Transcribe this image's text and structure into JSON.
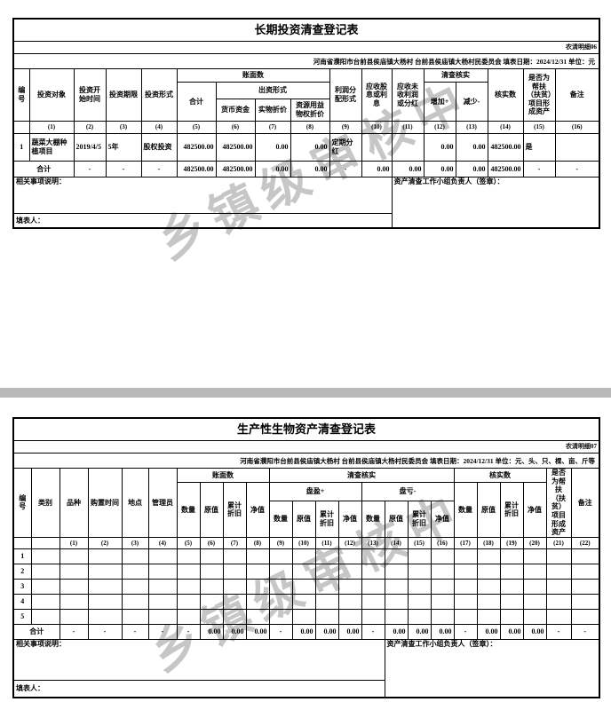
{
  "page": {
    "watermark_text": "乡镇级审核中",
    "watermark_color": "#bdbdbd",
    "divider_color": "#b9b9b9"
  },
  "table1": {
    "title": "长期投资清查登记表",
    "form_code": "农清明细06",
    "meta": "河南省濮阳市台前县侯庙镇大杨村  台前县侯庙镇大杨村民委员会  填表日期：2024/12/31  单位：元",
    "headers": {
      "no": "编号",
      "target": "投资对象",
      "start": "投资开始时间",
      "term": "投资期限",
      "form": "投资形式",
      "book": "账面数",
      "total": "合计",
      "contrib": "出资形式",
      "cash": "货币资金",
      "physical": "实物折价",
      "usufruct": "资源用益物权折价",
      "profit": "利润分配形式",
      "dividend": "应收股息或利息",
      "unreceived": "应收未收利润或分红",
      "verify": "清查核实",
      "increase": "增加+",
      "decrease": "减少-",
      "verified": "核实数",
      "poverty": "是否为帮扶（扶贫）项目形成资产",
      "remark": "备注"
    },
    "col_numbers": [
      "",
      "(1)",
      "(2)",
      "(3)",
      "(4)",
      "(5)",
      "(6)",
      "(7)",
      "(8)",
      "(9)",
      "(10)",
      "(11)",
      "(12)",
      "(13)",
      "(14)",
      "(15)",
      "(16)"
    ],
    "data_rows": [
      [
        "1",
        "蔬菜大棚种植项目",
        "2019/4/5",
        "5年",
        "股权投资",
        "482500.00",
        "482500.00",
        "0.00",
        "0.00",
        "定期分红",
        "",
        "",
        "0.00",
        "0.00",
        "482500.00",
        "是",
        ""
      ]
    ],
    "total_row": [
      {
        "t": "合计",
        "cs": 2
      },
      "-",
      "-",
      "-",
      "482500.00",
      "482500.00",
      "0.00",
      "0.00",
      "-",
      "0.00",
      "0.00",
      "0.00",
      "0.00",
      "482500.00",
      "-",
      "-"
    ],
    "notes_label": "相关事项说明：",
    "sign_label": "资产清查工作小组负责人（签章）：",
    "filler_label": "填表人："
  },
  "table2": {
    "title": "生产性生物资产清查登记表",
    "form_code": "农清明细07",
    "meta": "河南省濮阳市台前县侯庙镇大杨村  台前县侯庙镇大杨村民委员会  填表日期：2024/12/31  单位：元、头、只、棵、亩、斤等",
    "headers": {
      "no": "编号",
      "category": "类别",
      "breed": "品种",
      "purchase_time": "购置时间",
      "location": "地点",
      "manager": "管理员",
      "book": "账面数",
      "verify": "清查核实",
      "surplus": "盘盈+",
      "deficit": "盘亏-",
      "verified": "核实数",
      "qty": "数量",
      "orig": "原值",
      "depr": "累计折旧",
      "net": "净值",
      "poverty": "是否为帮扶（扶贫）项目形成资产",
      "remark": "备注"
    },
    "col_numbers": [
      "",
      "",
      "(1)",
      "(2)",
      "(3)",
      "(4)",
      "(5)",
      "(6)",
      "(7)",
      "(8)",
      "(9)",
      "(10)",
      "(11)",
      "(12)",
      "(13)",
      "(14)",
      "(15)",
      "(16)",
      "(17)",
      "(18)",
      "(19)",
      "(20)",
      "(21)",
      "(22)"
    ],
    "data_rows": [
      [
        "1",
        "",
        "",
        "",
        "",
        "",
        "",
        "",
        "",
        "",
        "",
        "",
        "",
        "",
        "",
        "",
        "",
        "",
        "",
        "",
        "",
        "",
        "",
        ""
      ],
      [
        "2",
        "",
        "",
        "",
        "",
        "",
        "",
        "",
        "",
        "",
        "",
        "",
        "",
        "",
        "",
        "",
        "",
        "",
        "",
        "",
        "",
        "",
        "",
        ""
      ],
      [
        "3",
        "",
        "",
        "",
        "",
        "",
        "",
        "",
        "",
        "",
        "",
        "",
        "",
        "",
        "",
        "",
        "",
        "",
        "",
        "",
        "",
        "",
        "",
        ""
      ],
      [
        "4",
        "",
        "",
        "",
        "",
        "",
        "",
        "",
        "",
        "",
        "",
        "",
        "",
        "",
        "",
        "",
        "",
        "",
        "",
        "",
        "",
        "",
        "",
        ""
      ],
      [
        "5",
        "",
        "",
        "",
        "",
        "",
        "",
        "",
        "",
        "",
        "",
        "",
        "",
        "",
        "",
        "",
        "",
        "",
        "",
        "",
        "",
        "",
        "",
        ""
      ]
    ],
    "total_row": [
      {
        "t": "合计",
        "cs": 2
      },
      "-",
      "-",
      "-",
      "-",
      "-",
      "0.00",
      "0.00",
      "0.00",
      "-",
      "0.00",
      "0.00",
      "0.00",
      "-",
      "0.00",
      "0.00",
      "0.00",
      "-",
      "0.00",
      "0.00",
      "0.00",
      "-",
      "-"
    ],
    "notes_label": "相关事项说明：",
    "sign_label": "资产清查工作小组负责人（签章）：",
    "filler_label": "填表人："
  }
}
